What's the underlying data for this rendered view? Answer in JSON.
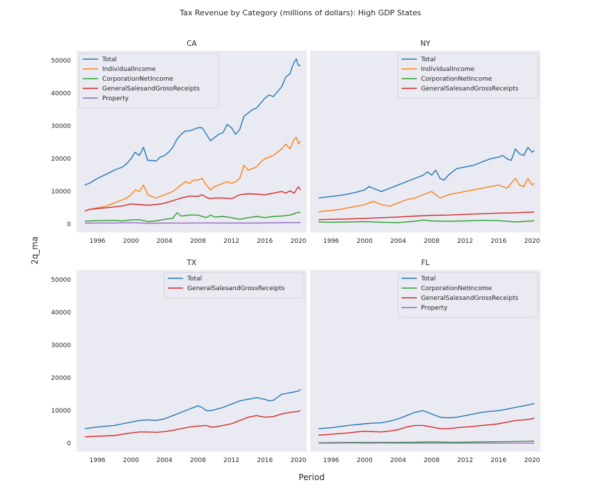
{
  "figure": {
    "title": "Tax Revenue by Category (millions of dollars): High GDP States",
    "xlabel": "Period",
    "ylabel": "2q_ma"
  },
  "colors": {
    "Total": "#1f77b4",
    "IndividualIncome": "#ff7f0e",
    "CorporationNetIncome": "#2ca02c",
    "GeneralSalesandGrossReceipts": "#d62728",
    "Property": "#9467bd",
    "axes_bg": "#eaeaf2"
  },
  "chart_data": [
    {
      "type": "line",
      "title": "CA",
      "xlim": [
        1993.5,
        2021.0
      ],
      "ylim": [
        -2500,
        53000
      ],
      "xticks": [
        1996,
        2000,
        2004,
        2008,
        2012,
        2016,
        2020
      ],
      "yticks": [
        0,
        10000,
        20000,
        30000,
        40000,
        50000
      ],
      "show_ytick_labels": true,
      "legend": "upper-left",
      "series": [
        {
          "name": "Total",
          "x": [
            1994.5,
            1995,
            1996,
            1997,
            1998,
            1999,
            1999.5,
            2000,
            2000.5,
            2001,
            2001.5,
            2002,
            2002.5,
            2003,
            2003.5,
            2004,
            2004.5,
            2005,
            2005.5,
            2006,
            2006.5,
            2007,
            2007.5,
            2008,
            2008.5,
            2009,
            2009.5,
            2010,
            2010.5,
            2011,
            2011.5,
            2012,
            2012.5,
            2013,
            2013.5,
            2014,
            2014.5,
            2015,
            2015.5,
            2016,
            2016.5,
            2017,
            2017.5,
            2018,
            2018.5,
            2019,
            2019.25,
            2019.5,
            2019.75,
            2020,
            2020.25
          ],
          "y": [
            12000,
            12500,
            14000,
            15200,
            16500,
            17500,
            18500,
            20000,
            22000,
            21000,
            23500,
            19500,
            19500,
            19300,
            20500,
            21000,
            22000,
            23500,
            26000,
            27500,
            28500,
            28500,
            29000,
            29500,
            29500,
            27500,
            25500,
            26500,
            27500,
            28000,
            30500,
            29500,
            27500,
            29000,
            33000,
            34000,
            35000,
            35500,
            37000,
            38500,
            39500,
            39000,
            40500,
            42000,
            45000,
            46000,
            48000,
            49500,
            50500,
            48500,
            48500
          ]
        },
        {
          "name": "IndividualIncome",
          "x": [
            1994.5,
            1995,
            1996,
            1997,
            1998,
            1999,
            1999.5,
            2000,
            2000.5,
            2001,
            2001.5,
            2002,
            2002.5,
            2003,
            2003.5,
            2004,
            2004.5,
            2005,
            2005.5,
            2006,
            2006.5,
            2007,
            2007.5,
            2008,
            2008.5,
            2009,
            2009.5,
            2010,
            2010.5,
            2011,
            2011.5,
            2012,
            2012.5,
            2013,
            2013.5,
            2014,
            2014.5,
            2015,
            2015.5,
            2016,
            2016.5,
            2017,
            2017.5,
            2018,
            2018.5,
            2019,
            2019.25,
            2019.5,
            2019.75,
            2020,
            2020.25
          ],
          "y": [
            4000,
            4500,
            5000,
            5500,
            6500,
            7500,
            8000,
            9000,
            10500,
            10000,
            12000,
            9000,
            8500,
            8000,
            8500,
            9000,
            9500,
            10000,
            11000,
            12000,
            13000,
            12500,
            13500,
            13500,
            14000,
            12000,
            10500,
            11500,
            12000,
            12500,
            13000,
            12500,
            13000,
            14000,
            18000,
            16500,
            17000,
            17500,
            19000,
            20000,
            20500,
            21000,
            22000,
            23000,
            24500,
            23000,
            24500,
            26000,
            26500,
            24500,
            25500
          ]
        },
        {
          "name": "CorporationNetIncome",
          "x": [
            1994.5,
            1996,
            1998,
            1999,
            2000,
            2001,
            2002,
            2003,
            2004,
            2005,
            2005.5,
            2006,
            2007,
            2008,
            2009,
            2009.5,
            2010,
            2011,
            2012,
            2013,
            2014,
            2015,
            2016,
            2017,
            2018,
            2019,
            2019.5,
            2020,
            2020.25
          ],
          "y": [
            900,
            1100,
            1200,
            1000,
            1300,
            1400,
            800,
            1000,
            1500,
            1800,
            3500,
            2500,
            2800,
            2800,
            2000,
            2800,
            2200,
            2400,
            2000,
            1500,
            2000,
            2400,
            2000,
            2400,
            2500,
            2800,
            3200,
            3700,
            3500
          ]
        },
        {
          "name": "GeneralSalesandGrossReceipts",
          "x": [
            1994.5,
            1995,
            1996,
            1997,
            1998,
            1999,
            2000,
            2001,
            2002,
            2003,
            2004,
            2005,
            2006,
            2007,
            2008,
            2008.5,
            2009,
            2009.5,
            2010,
            2011,
            2012,
            2013,
            2014,
            2015,
            2016,
            2017,
            2018,
            2018.5,
            2019,
            2019.5,
            2020,
            2020.25
          ],
          "y": [
            4000,
            4500,
            4800,
            5000,
            5300,
            5600,
            6200,
            6000,
            5800,
            6000,
            6400,
            7200,
            8000,
            8600,
            8500,
            9000,
            8200,
            7800,
            8000,
            8000,
            7800,
            9000,
            9300,
            9200,
            9000,
            9500,
            10000,
            9500,
            10200,
            9500,
            11500,
            10500
          ]
        },
        {
          "name": "Property",
          "x": [
            1994.5,
            1996,
            1998,
            2000,
            2002,
            2004,
            2006,
            2008,
            2010,
            2012,
            2014,
            2016,
            2018,
            2020,
            2020.25
          ],
          "y": [
            300,
            400,
            400,
            450,
            300,
            350,
            350,
            400,
            400,
            350,
            350,
            400,
            500,
            500,
            500
          ]
        }
      ]
    },
    {
      "type": "line",
      "title": "NY",
      "xlim": [
        1993.5,
        2021.0
      ],
      "ylim": [
        -2500,
        53000
      ],
      "xticks": [
        1996,
        2000,
        2004,
        2008,
        2012,
        2016,
        2020
      ],
      "yticks": [
        0,
        10000,
        20000,
        30000,
        40000,
        50000
      ],
      "show_ytick_labels": false,
      "legend": "upper-right",
      "series": [
        {
          "name": "Total",
          "x": [
            1994.5,
            1995,
            1996,
            1997,
            1998,
            1999,
            2000,
            2000.5,
            2001,
            2001.5,
            2002,
            2003,
            2004,
            2005,
            2006,
            2007,
            2007.5,
            2008,
            2008.5,
            2009,
            2009.5,
            2010,
            2011,
            2012,
            2013,
            2014,
            2015,
            2016,
            2016.5,
            2017,
            2017.5,
            2018,
            2018.5,
            2019,
            2019.5,
            2020,
            2020.25
          ],
          "y": [
            8000,
            8200,
            8500,
            8800,
            9200,
            9800,
            10500,
            11500,
            11000,
            10500,
            10000,
            11000,
            12000,
            13000,
            14000,
            15000,
            16000,
            15000,
            16500,
            14000,
            13500,
            15000,
            17000,
            17500,
            18000,
            19000,
            20000,
            20500,
            21000,
            20000,
            19500,
            23000,
            21500,
            21000,
            23500,
            22000,
            22500
          ]
        },
        {
          "name": "IndividualIncome",
          "x": [
            1994.5,
            1995,
            1996,
            1997,
            1998,
            1999,
            2000,
            2001,
            2002,
            2003,
            2004,
            2005,
            2006,
            2007,
            2008,
            2008.5,
            2009,
            2010,
            2011,
            2012,
            2013,
            2014,
            2015,
            2016,
            2017,
            2018,
            2018.5,
            2019,
            2019.5,
            2020,
            2020.25
          ],
          "y": [
            3800,
            4000,
            4200,
            4500,
            5000,
            5500,
            6000,
            7000,
            6000,
            5500,
            6500,
            7500,
            8000,
            9000,
            10000,
            9000,
            8000,
            9000,
            9500,
            10000,
            10500,
            11000,
            11500,
            12000,
            11000,
            14000,
            12000,
            11500,
            14000,
            12000,
            12500
          ]
        },
        {
          "name": "CorporationNetIncome",
          "x": [
            1994.5,
            1996,
            1998,
            2000,
            2002,
            2004,
            2006,
            2007,
            2008,
            2010,
            2012,
            2014,
            2016,
            2018,
            2020,
            2020.25
          ],
          "y": [
            700,
            600,
            700,
            800,
            600,
            500,
            900,
            1300,
            1000,
            900,
            1000,
            1200,
            1100,
            700,
            1000,
            1100
          ]
        },
        {
          "name": "GeneralSalesandGrossReceipts",
          "x": [
            1994.5,
            1996,
            1998,
            2000,
            2002,
            2004,
            2006,
            2008,
            2010,
            2012,
            2014,
            2016,
            2018,
            2020,
            2020.25
          ],
          "y": [
            1400,
            1500,
            1600,
            1800,
            2000,
            2200,
            2500,
            2700,
            2800,
            3000,
            3200,
            3400,
            3500,
            3700,
            3800
          ]
        }
      ]
    },
    {
      "type": "line",
      "title": "TX",
      "xlim": [
        1993.5,
        2021.0
      ],
      "ylim": [
        -2500,
        53000
      ],
      "xticks": [
        1996,
        2000,
        2004,
        2008,
        2012,
        2016,
        2020
      ],
      "yticks": [
        0,
        10000,
        20000,
        30000,
        40000,
        50000
      ],
      "show_ytick_labels": true,
      "legend": "upper-right",
      "series": [
        {
          "name": "Total",
          "x": [
            1994.5,
            1996,
            1998,
            1999,
            2000,
            2001,
            2002,
            2003,
            2004,
            2005,
            2006,
            2007,
            2008,
            2008.5,
            2009,
            2009.5,
            2010,
            2011,
            2012,
            2013,
            2014,
            2015,
            2016,
            2016.5,
            2017,
            2018,
            2019,
            2020,
            2020.25
          ],
          "y": [
            4500,
            5000,
            5500,
            6000,
            6500,
            7000,
            7200,
            7000,
            7500,
            8500,
            9500,
            10500,
            11500,
            11000,
            10000,
            10000,
            10300,
            11000,
            12000,
            13000,
            13500,
            14000,
            13500,
            13000,
            13200,
            15000,
            15500,
            16000,
            16500
          ]
        },
        {
          "name": "GeneralSalesandGrossReceipts",
          "x": [
            1994.5,
            1996,
            1998,
            1999,
            2000,
            2001,
            2002,
            2003,
            2004,
            2005,
            2006,
            2007,
            2008,
            2009,
            2009.5,
            2010,
            2011,
            2012,
            2013,
            2014,
            2015,
            2016,
            2017,
            2018,
            2019,
            2020,
            2020.25
          ],
          "y": [
            2000,
            2200,
            2400,
            2800,
            3200,
            3500,
            3500,
            3400,
            3600,
            4000,
            4500,
            5000,
            5300,
            5500,
            5000,
            5000,
            5500,
            6000,
            7000,
            8000,
            8500,
            8000,
            8200,
            9000,
            9500,
            9800,
            10000
          ]
        }
      ]
    },
    {
      "type": "line",
      "title": "FL",
      "xlim": [
        1993.5,
        2021.0
      ],
      "ylim": [
        -2500,
        53000
      ],
      "xticks": [
        1996,
        2000,
        2004,
        2008,
        2012,
        2016,
        2020
      ],
      "yticks": [
        0,
        10000,
        20000,
        30000,
        40000,
        50000
      ],
      "show_ytick_labels": false,
      "legend": "upper-right",
      "series": [
        {
          "name": "Total",
          "x": [
            1994.5,
            1996,
            1998,
            2000,
            2001,
            2002,
            2003,
            2004,
            2005,
            2006,
            2007,
            2008,
            2009,
            2010,
            2011,
            2012,
            2013,
            2014,
            2015,
            2016,
            2017,
            2018,
            2019,
            2020,
            2020.25
          ],
          "y": [
            4500,
            4800,
            5500,
            6000,
            6200,
            6300,
            6800,
            7500,
            8500,
            9500,
            10000,
            9000,
            8000,
            7800,
            8000,
            8500,
            9000,
            9500,
            9800,
            10000,
            10500,
            11000,
            11500,
            12000,
            12200
          ]
        },
        {
          "name": "CorporationNetIncome",
          "x": [
            1994.5,
            1996,
            1998,
            2000,
            2002,
            2004,
            2006,
            2008,
            2010,
            2012,
            2014,
            2016,
            2018,
            2020,
            2020.25
          ],
          "y": [
            200,
            250,
            300,
            300,
            300,
            300,
            400,
            500,
            350,
            400,
            500,
            550,
            600,
            700,
            700
          ]
        },
        {
          "name": "GeneralSalesandGrossReceipts",
          "x": [
            1994.5,
            1996,
            1998,
            1999,
            2000,
            2001,
            2002,
            2003,
            2004,
            2005,
            2006,
            2007,
            2008,
            2009,
            2010,
            2011,
            2012,
            2013,
            2014,
            2015,
            2016,
            2017,
            2018,
            2019,
            2020,
            2020.25
          ],
          "y": [
            2500,
            2800,
            3200,
            3500,
            3700,
            3600,
            3500,
            3800,
            4200,
            5000,
            5500,
            5500,
            5000,
            4500,
            4500,
            4800,
            5000,
            5200,
            5500,
            5700,
            6000,
            6500,
            7000,
            7200,
            7500,
            7800
          ]
        },
        {
          "name": "Property",
          "x": [
            1994.5,
            1996,
            1998,
            2000,
            2002,
            2004,
            2006,
            2008,
            2010,
            2012,
            2014,
            2016,
            2018,
            2020,
            2020.25
          ],
          "y": [
            100,
            100,
            150,
            100,
            150,
            100,
            100,
            100,
            100,
            100,
            100,
            100,
            100,
            100,
            100
          ]
        }
      ]
    }
  ]
}
